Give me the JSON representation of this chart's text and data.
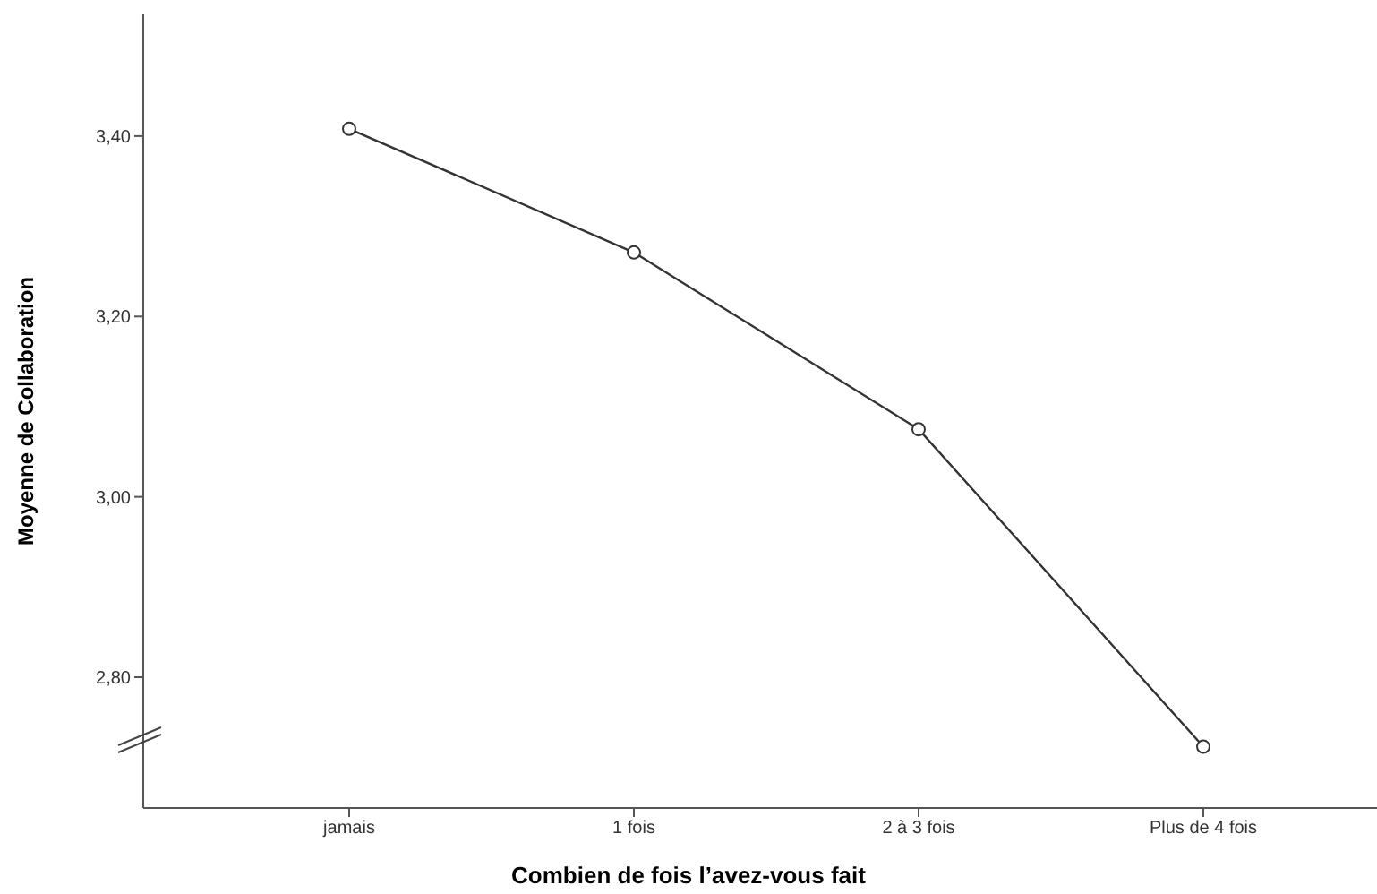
{
  "chart_data": {
    "type": "line",
    "xlabel": "Combien de fois l’avez-vous fait",
    "ylabel": "Moyenne de Collaboration",
    "categories": [
      "jamais",
      "1 fois",
      "2 à 3 fois",
      "Plus de 4 fois"
    ],
    "series": [
      {
        "color": "#333333",
        "values": [
          3.408,
          3.271,
          3.075,
          2.723
        ]
      }
    ],
    "ylim": [
      2.655,
      3.535
    ],
    "yticks": [
      {
        "value": 2.8,
        "label": "2,80"
      },
      {
        "value": 3.0,
        "label": "3,00"
      },
      {
        "value": 3.2,
        "label": "3,20"
      },
      {
        "value": 3.4,
        "label": "3,40"
      }
    ],
    "grid": false,
    "legend": false,
    "marker": "circle",
    "line_style": "solid"
  }
}
